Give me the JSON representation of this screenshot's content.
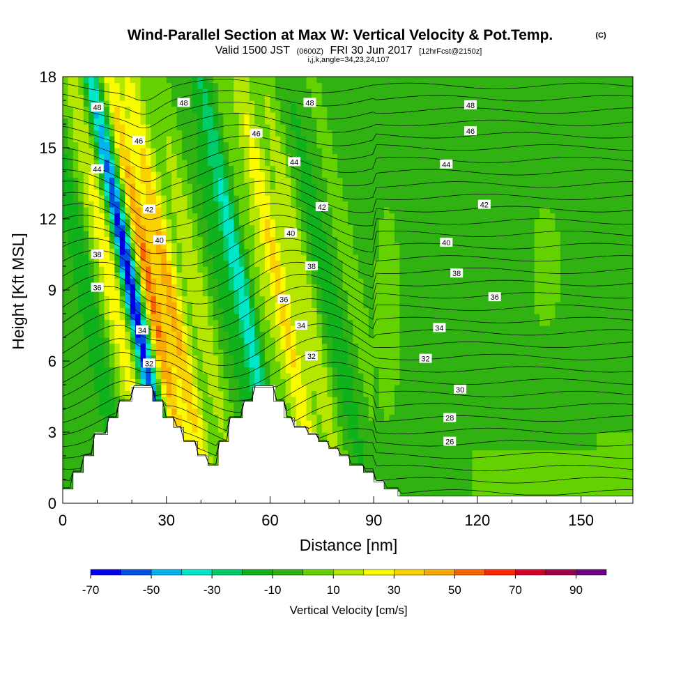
{
  "title": {
    "main": "Wind-Parallel Section at Max W: Vertical Velocity & Pot.Temp.",
    "copyright": "(C)",
    "valid_prefix": "Valid 1500 JST",
    "valid_utc": "(0600Z)",
    "valid_date": "FRI 30 Jun 2017",
    "forecast": "[12hrFcst@2150z]",
    "section_info": "i,j,k,angle=34,23,24,107"
  },
  "chart_data": {
    "type": "heatmap",
    "xlabel": "Distance [nm]",
    "ylabel": "Height [Kft MSL]",
    "xlim": [
      0,
      165
    ],
    "ylim": [
      0,
      18
    ],
    "x_ticks": [
      0,
      30,
      60,
      90,
      120,
      150
    ],
    "y_ticks": [
      0,
      3,
      6,
      9,
      12,
      15,
      18
    ],
    "colorbar": {
      "label": "Vertical Velocity [cm/s]",
      "tick_labels": [
        "-70",
        "-50",
        "-30",
        "-10",
        "10",
        "30",
        "50",
        "70",
        "90"
      ],
      "tick_values": [
        -70,
        -50,
        -30,
        -10,
        10,
        30,
        50,
        70,
        90
      ],
      "bins": [
        -70,
        -60,
        -50,
        -40,
        -30,
        -20,
        -10,
        0,
        10,
        20,
        30,
        40,
        50,
        60,
        70,
        80,
        90
      ],
      "colors": [
        "#0000ee",
        "#0050e6",
        "#00b4f0",
        "#00e6c8",
        "#00cc6a",
        "#10b21c",
        "#30b212",
        "#64d200",
        "#b4e600",
        "#fafa00",
        "#fad200",
        "#faaa00",
        "#fa6400",
        "#fa2800",
        "#d20028",
        "#a0004b",
        "#6e0082"
      ]
    },
    "contour_labels_theta": [
      "26",
      "28",
      "30",
      "32",
      "34",
      "36",
      "38",
      "40",
      "42",
      "44",
      "46",
      "48"
    ],
    "contour_label_marks": [
      {
        "x": 10,
        "y": 16.7,
        "label": "48"
      },
      {
        "x": 35,
        "y": 16.9,
        "label": "48"
      },
      {
        "x": 71.5,
        "y": 16.9,
        "label": "48"
      },
      {
        "x": 118,
        "y": 16.8,
        "label": "48"
      },
      {
        "x": 22,
        "y": 15.3,
        "label": "46"
      },
      {
        "x": 56,
        "y": 15.6,
        "label": "46"
      },
      {
        "x": 118,
        "y": 15.7,
        "label": "46"
      },
      {
        "x": 10,
        "y": 14.1,
        "label": "44"
      },
      {
        "x": 67,
        "y": 14.4,
        "label": "44"
      },
      {
        "x": 111,
        "y": 14.3,
        "label": "44"
      },
      {
        "x": 25,
        "y": 12.4,
        "label": "42"
      },
      {
        "x": 75,
        "y": 12.5,
        "label": "42"
      },
      {
        "x": 122,
        "y": 12.6,
        "label": "42"
      },
      {
        "x": 28,
        "y": 11.1,
        "label": "40"
      },
      {
        "x": 66,
        "y": 11.4,
        "label": "40"
      },
      {
        "x": 111,
        "y": 11.0,
        "label": "40"
      },
      {
        "x": 10,
        "y": 10.5,
        "label": "38"
      },
      {
        "x": 72,
        "y": 10.0,
        "label": "38"
      },
      {
        "x": 114,
        "y": 9.7,
        "label": "38"
      },
      {
        "x": 10,
        "y": 9.1,
        "label": "36"
      },
      {
        "x": 64,
        "y": 8.6,
        "label": "36"
      },
      {
        "x": 125,
        "y": 8.7,
        "label": "36"
      },
      {
        "x": 23,
        "y": 7.3,
        "label": "34"
      },
      {
        "x": 69,
        "y": 7.5,
        "label": "34"
      },
      {
        "x": 109,
        "y": 7.4,
        "label": "34"
      },
      {
        "x": 25,
        "y": 5.9,
        "label": "32"
      },
      {
        "x": 72,
        "y": 6.2,
        "label": "32"
      },
      {
        "x": 105,
        "y": 6.1,
        "label": "32"
      },
      {
        "x": 115,
        "y": 4.8,
        "label": "30"
      },
      {
        "x": 112,
        "y": 3.6,
        "label": "28"
      },
      {
        "x": 112,
        "y": 2.6,
        "label": "26"
      }
    ],
    "terrain": [
      [
        0,
        0.6
      ],
      [
        0,
        0.6
      ],
      [
        3,
        0.6
      ],
      [
        3,
        1.3
      ],
      [
        6,
        1.3
      ],
      [
        6,
        2.0
      ],
      [
        9,
        2.0
      ],
      [
        9,
        2.9
      ],
      [
        13,
        2.9
      ],
      [
        13,
        3.6
      ],
      [
        16,
        3.6
      ],
      [
        16,
        4.3
      ],
      [
        20,
        4.3
      ],
      [
        20,
        4.9
      ],
      [
        26,
        4.9
      ],
      [
        26,
        4.3
      ],
      [
        29,
        4.3
      ],
      [
        29,
        3.6
      ],
      [
        32,
        3.6
      ],
      [
        32,
        3.2
      ],
      [
        35,
        3.2
      ],
      [
        35,
        2.6
      ],
      [
        39,
        2.6
      ],
      [
        39,
        2.0
      ],
      [
        42,
        2.0
      ],
      [
        42,
        1.6
      ],
      [
        45,
        1.6
      ],
      [
        45,
        2.6
      ],
      [
        48,
        2.6
      ],
      [
        48,
        3.6
      ],
      [
        52,
        3.6
      ],
      [
        52,
        4.3
      ],
      [
        55,
        4.3
      ],
      [
        55,
        4.9
      ],
      [
        61,
        4.9
      ],
      [
        61,
        4.3
      ],
      [
        64,
        4.3
      ],
      [
        64,
        3.6
      ],
      [
        67,
        3.6
      ],
      [
        67,
        3.2
      ],
      [
        71,
        3.2
      ],
      [
        71,
        2.9
      ],
      [
        74,
        2.9
      ],
      [
        74,
        2.6
      ],
      [
        77,
        2.6
      ],
      [
        77,
        2.3
      ],
      [
        80,
        2.3
      ],
      [
        80,
        2.0
      ],
      [
        83,
        2.0
      ],
      [
        83,
        1.6
      ],
      [
        87,
        1.6
      ],
      [
        87,
        1.3
      ],
      [
        90,
        1.3
      ],
      [
        90,
        0.9
      ],
      [
        93,
        0.9
      ],
      [
        93,
        0.6
      ],
      [
        97,
        0.6
      ],
      [
        97,
        0.3
      ],
      [
        165,
        0.3
      ],
      [
        165,
        0
      ]
    ],
    "w_field": {
      "zones": [
        {
          "x": 8,
          "w": 3,
          "v": -15
        },
        {
          "x": 16,
          "w": 4,
          "v": 25
        },
        {
          "x": 21,
          "w": 2.5,
          "v": -60
        },
        {
          "x": 26.5,
          "w": 2.5,
          "v": 45
        },
        {
          "x": 32,
          "w": 3,
          "v": 38
        },
        {
          "x": 40,
          "w": 3.5,
          "v": 15
        },
        {
          "x": 47,
          "w": 3,
          "v": -8
        },
        {
          "x": 53,
          "w": 3,
          "v": -30
        },
        {
          "x": 58,
          "w": 3,
          "v": 10
        },
        {
          "x": 64,
          "w": 3,
          "v": 30
        },
        {
          "x": 71,
          "w": 3,
          "v": 18
        },
        {
          "x": 78,
          "w": 3.5,
          "v": -12
        },
        {
          "x": 85,
          "w": 3,
          "v": 5
        }
      ],
      "background": -2,
      "tilt": -1.3
    }
  }
}
